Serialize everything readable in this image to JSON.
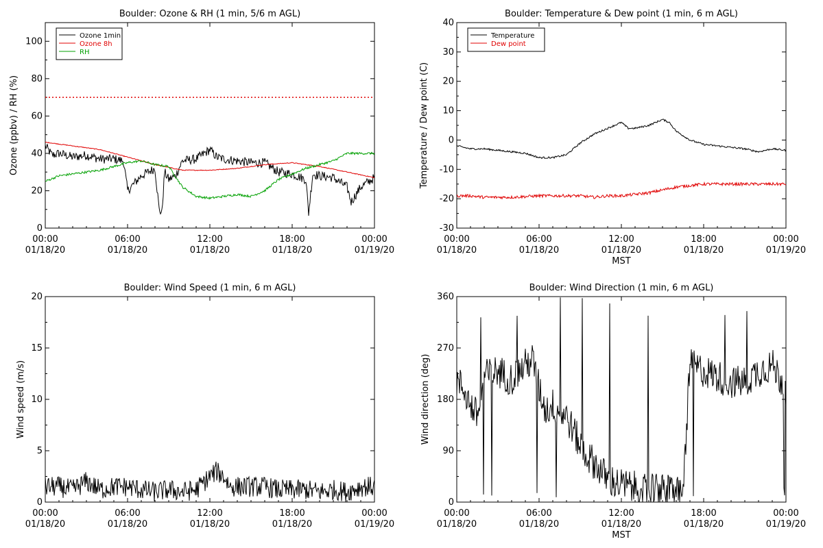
{
  "chart_data": [
    {
      "id": "ozone",
      "type": "line",
      "title": "Boulder: Ozone & RH (1 min, 5/6 m AGL)",
      "ylabel": "Ozone (ppbv) / RH (%)",
      "xlabel": "",
      "ylim": [
        0,
        110
      ],
      "yticks": [
        0,
        20,
        40,
        60,
        80,
        100
      ],
      "x_tick_labels": [
        [
          "00:00",
          "01/18/20"
        ],
        [
          "06:00",
          "01/18/20"
        ],
        [
          "12:00",
          "01/18/20"
        ],
        [
          "18:00",
          "01/18/20"
        ],
        [
          "00:00",
          "01/19/20"
        ]
      ],
      "reference_line": {
        "y": 70,
        "color": "#e00000",
        "style": "dotted"
      },
      "legend": {
        "position": "top-left"
      },
      "series": [
        {
          "name": "Ozone 1min",
          "color": "#000000",
          "noise": 2.5,
          "x": [
            0,
            0.5,
            1,
            2,
            3,
            4,
            5,
            5.7,
            6,
            6.5,
            7,
            7.5,
            8,
            8.3,
            8.5,
            8.7,
            9,
            9.5,
            10,
            11,
            12,
            12.5,
            13,
            14,
            15,
            16,
            17,
            18,
            19,
            19.2,
            19.5,
            20,
            21,
            22,
            22.3,
            23,
            24
          ],
          "y": [
            44,
            39,
            40,
            38,
            39,
            37,
            37,
            36,
            20,
            24,
            28,
            30,
            32,
            10,
            8,
            30,
            26,
            28,
            36,
            37,
            42,
            38,
            37,
            36,
            35,
            35,
            30,
            29,
            26,
            8,
            29,
            28,
            27,
            22,
            14,
            22,
            27
          ]
        },
        {
          "name": "Ozone 8h",
          "color": "#e00000",
          "noise": 0.2,
          "x": [
            0,
            2,
            4,
            6,
            8,
            10,
            12,
            14,
            16,
            18,
            20,
            22,
            24
          ],
          "y": [
            46,
            44,
            42,
            38,
            34,
            31,
            31,
            32,
            34,
            35,
            33,
            30,
            27
          ]
        },
        {
          "name": "RH",
          "color": "#00a000",
          "noise": 0.6,
          "x": [
            0,
            1,
            2,
            3,
            4,
            5,
            6,
            7,
            8,
            9,
            10,
            11,
            12,
            13,
            14,
            15,
            16,
            17,
            18,
            19,
            20,
            21,
            22,
            23,
            24
          ],
          "y": [
            25,
            28,
            29,
            30,
            31,
            33,
            35,
            36,
            34,
            33,
            22,
            17,
            16,
            17,
            18,
            17,
            20,
            26,
            29,
            32,
            34,
            36,
            40,
            40,
            40
          ]
        }
      ]
    },
    {
      "id": "temperature",
      "type": "line",
      "title": "Boulder: Temperature & Dew point (1 min, 6 m AGL)",
      "ylabel": "Temperature / Dew point (C)",
      "xlabel": "MST",
      "ylim": [
        -30,
        40
      ],
      "yticks": [
        -30,
        -20,
        -10,
        0,
        10,
        20,
        30,
        40
      ],
      "x_tick_labels": [
        [
          "00:00",
          "01/18/20"
        ],
        [
          "06:00",
          "01/18/20"
        ],
        [
          "12:00",
          "01/18/20"
        ],
        [
          "18:00",
          "01/18/20"
        ],
        [
          "00:00",
          "01/19/20"
        ]
      ],
      "legend": {
        "position": "top-left"
      },
      "series": [
        {
          "name": "Temperature",
          "color": "#000000",
          "noise": 0.3,
          "x": [
            0,
            0.5,
            1,
            2,
            3,
            4,
            5,
            6,
            7,
            8,
            9,
            10,
            11,
            12,
            12.5,
            13,
            14,
            15,
            15.5,
            16,
            17,
            18,
            19,
            20,
            21,
            22,
            23,
            24
          ],
          "y": [
            -2,
            -2.5,
            -3,
            -3,
            -3.5,
            -4,
            -4.5,
            -6,
            -6,
            -5,
            -1,
            2,
            4,
            6,
            4,
            4,
            5,
            7,
            6,
            3,
            0,
            -1.5,
            -2,
            -2.5,
            -3,
            -4,
            -3,
            -3.5
          ]
        },
        {
          "name": "Dew point",
          "color": "#e00000",
          "noise": 0.5,
          "x": [
            0,
            1,
            2,
            4,
            6,
            8,
            9,
            10,
            11,
            12,
            13,
            14,
            15,
            16,
            17,
            18,
            20,
            22,
            24
          ],
          "y": [
            -19,
            -19,
            -19.5,
            -19.5,
            -19,
            -19,
            -19,
            -19.5,
            -19,
            -19,
            -18.5,
            -18,
            -17,
            -16,
            -15.5,
            -15,
            -15,
            -15,
            -15
          ]
        }
      ]
    },
    {
      "id": "wind-speed",
      "type": "line",
      "title": "Boulder: Wind Speed (1 min, 6 m AGL)",
      "ylabel": "Wind speed (m/s)",
      "xlabel": "",
      "ylim": [
        0,
        20
      ],
      "yticks": [
        0,
        5,
        10,
        15,
        20
      ],
      "x_tick_labels": [
        [
          "00:00",
          "01/18/20"
        ],
        [
          "06:00",
          "01/18/20"
        ],
        [
          "12:00",
          "01/18/20"
        ],
        [
          "18:00",
          "01/18/20"
        ],
        [
          "00:00",
          "01/19/20"
        ]
      ],
      "series": [
        {
          "name": "",
          "color": "#000000",
          "noise": 1.0,
          "clip_min": 0,
          "x": [
            0,
            1,
            2,
            3,
            4,
            5,
            6,
            7,
            8,
            9,
            10,
            11,
            12,
            12.5,
            13,
            13.5,
            14,
            15,
            16,
            17,
            18,
            19,
            20,
            21,
            22,
            23,
            24
          ],
          "y": [
            1.5,
            1.5,
            1.2,
            2.0,
            1.2,
            1.5,
            1.5,
            1.2,
            1.0,
            1.2,
            1.0,
            1.2,
            2.5,
            3.0,
            2.5,
            1.5,
            1.5,
            1.5,
            1.5,
            1.2,
            1.2,
            1.2,
            1.0,
            1.2,
            1.0,
            1.5,
            1.5
          ]
        }
      ]
    },
    {
      "id": "wind-direction",
      "type": "line",
      "title": "Boulder: Wind Direction (1 min, 6 m AGL)",
      "ylabel": "Wind direction (deg)",
      "xlabel": "MST",
      "ylim": [
        0,
        360
      ],
      "yticks": [
        0,
        90,
        180,
        270,
        360
      ],
      "x_tick_labels": [
        [
          "00:00",
          "01/18/20"
        ],
        [
          "06:00",
          "01/18/20"
        ],
        [
          "12:00",
          "01/18/20"
        ],
        [
          "18:00",
          "01/18/20"
        ],
        [
          "00:00",
          "01/19/20"
        ]
      ],
      "series": [
        {
          "name": "",
          "color": "#000000",
          "noise": 30,
          "clip_min": 0,
          "clip_max": 360,
          "x": [
            0,
            0.5,
            1,
            1.5,
            2,
            3,
            4,
            5,
            5.5,
            6,
            6.5,
            7,
            8,
            9,
            9.5,
            10,
            11,
            12,
            13,
            14,
            15,
            16,
            16.5,
            17,
            18,
            19,
            20,
            21,
            22,
            23,
            24
          ],
          "y": [
            210,
            200,
            170,
            150,
            220,
            230,
            215,
            240,
            250,
            200,
            160,
            170,
            150,
            100,
            80,
            70,
            40,
            30,
            25,
            20,
            20,
            20,
            20,
            240,
            230,
            220,
            210,
            210,
            230,
            240,
            200
          ]
        }
      ]
    }
  ]
}
